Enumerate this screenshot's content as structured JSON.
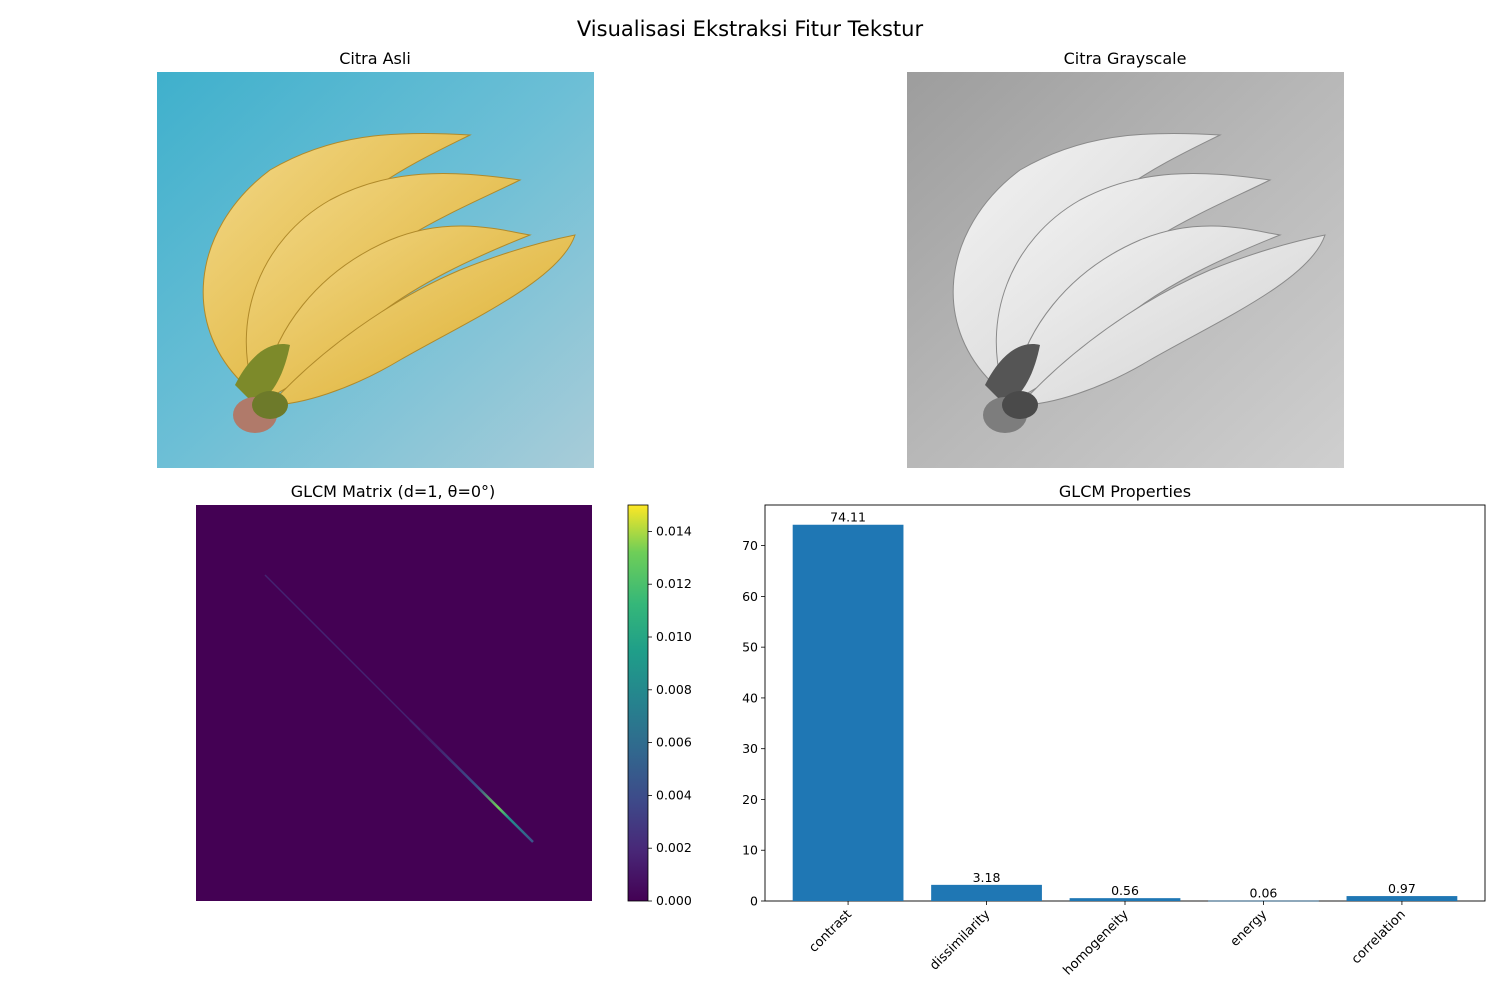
{
  "figure": {
    "title": "Visualisasi Ekstraksi Fitur Tekstur"
  },
  "panels": {
    "original": {
      "title": "Citra Asli"
    },
    "grayscale": {
      "title": "Citra Grayscale"
    },
    "glcm": {
      "title": "GLCM Matrix (d=1, θ=0°)"
    },
    "props": {
      "title": "GLCM Properties"
    }
  },
  "colors": {
    "bar": "#1f77b4",
    "viridis_low": "#440154",
    "viridis_high": "#fde725",
    "background_blue": "#56b0c8",
    "banana_yellow": "#e8c35a"
  },
  "chart_data": [
    {
      "type": "heatmap",
      "title": "GLCM Matrix (d=1, θ=0°)",
      "colormap": "viridis",
      "colorbar": {
        "vmin": 0.0,
        "vmax": 0.015,
        "ticks": [
          "0.000",
          "0.002",
          "0.004",
          "0.006",
          "0.008",
          "0.010",
          "0.012",
          "0.014"
        ]
      },
      "description_values": "near-zero everywhere except a thin diagonal band; peak approx 0.014"
    },
    {
      "type": "bar",
      "title": "GLCM Properties",
      "categories": [
        "contrast",
        "dissimilarity",
        "homogeneity",
        "energy",
        "correlation"
      ],
      "values": [
        74.11,
        3.18,
        0.56,
        0.06,
        0.97
      ],
      "labels": [
        "74.11",
        "3.18",
        "0.56",
        "0.06",
        "0.97"
      ],
      "ylim": [
        0,
        78
      ],
      "yticks": [
        0,
        10,
        20,
        30,
        40,
        50,
        60,
        70
      ],
      "xlabel": "",
      "ylabel": "",
      "grid": false
    }
  ]
}
